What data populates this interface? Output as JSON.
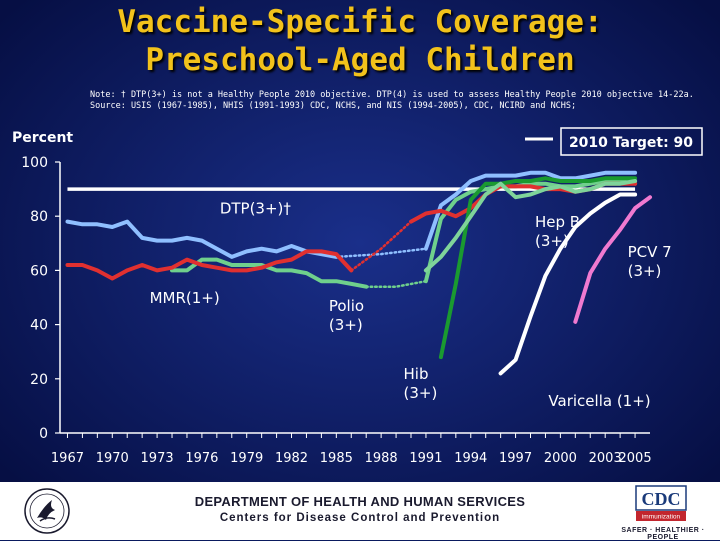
{
  "title": {
    "line1": "Vaccine-Specific Coverage:",
    "line2": "Preschool-Aged Children"
  },
  "notes": {
    "line1": "Note:  † DTP(3+) is not a Healthy People 2010 objective.  DTP(4) is used to assess Healthy People 2010 objective 14-22a.",
    "line2": "Source: USIS (1967-1985), NHIS (1991-1993) CDC, NCHS, and NIS (1994-2005), CDC, NCIRD and NCHS;"
  },
  "footer": {
    "department": "DEPARTMENT OF HEALTH AND HUMAN SERVICES",
    "centers": "Centers for Disease Control and Prevention",
    "cdc_logo": "CDC",
    "cdc_badge": "immunization",
    "cdc_tagline": "SAFER · HEALTHIER · PEOPLE",
    "hhs_logo_icon": "hhs-eagle-icon"
  },
  "colors": {
    "background": "#0a1a5e",
    "title": "#f2c21b",
    "dtp": "#8fbfff",
    "mmr": "#6fd08c",
    "polio": "#e03030",
    "hib": "#1a9a30",
    "hepb": "#7fd49a",
    "varicella": "#ffffff",
    "pcv7": "#f07ad0",
    "target": "#ffffff"
  },
  "chart_data": {
    "type": "line",
    "title": "Vaccine-Specific Coverage: Preschool-Aged Children",
    "ylabel": "Percent",
    "xlabel": "",
    "xlim": [
      1966.5,
      2006
    ],
    "ylim": [
      0,
      100
    ],
    "yticks": [
      0,
      20,
      40,
      60,
      80,
      100
    ],
    "xticks": [
      1967,
      1970,
      1973,
      1976,
      1979,
      1982,
      1985,
      1988,
      1991,
      1994,
      1997,
      2000,
      2003,
      2005
    ],
    "xtick_labels": [
      "1967",
      "1970",
      "1973",
      "1976",
      "1979",
      "1982",
      "1985",
      "1988",
      "1991",
      "1994",
      "1997",
      "2000",
      "2003",
      "2005"
    ],
    "grid": false,
    "target": {
      "label": "2010 Target: 90",
      "value": 90
    },
    "series": [
      {
        "name": "DTP(3+)†",
        "color": "#8fbfff",
        "segments": [
          {
            "style": "solid",
            "points": [
              [
                1967,
                78
              ],
              [
                1968,
                77
              ],
              [
                1969,
                77
              ],
              [
                1970,
                76
              ],
              [
                1971,
                78
              ],
              [
                1972,
                72
              ],
              [
                1973,
                71
              ],
              [
                1974,
                71
              ],
              [
                1975,
                72
              ],
              [
                1976,
                71
              ],
              [
                1977,
                68
              ],
              [
                1978,
                65
              ],
              [
                1979,
                67
              ],
              [
                1980,
                68
              ],
              [
                1981,
                67
              ],
              [
                1982,
                69
              ],
              [
                1983,
                67
              ],
              [
                1984,
                66
              ],
              [
                1985,
                65
              ]
            ]
          },
          {
            "style": "dotted",
            "points": [
              [
                1985,
                65
              ],
              [
                1988,
                66
              ],
              [
                1991,
                68
              ]
            ]
          },
          {
            "style": "solid",
            "points": [
              [
                1991,
                68
              ],
              [
                1992,
                84
              ],
              [
                1993,
                88
              ],
              [
                1994,
                93
              ],
              [
                1995,
                95
              ],
              [
                1996,
                95
              ],
              [
                1997,
                95
              ],
              [
                1998,
                96
              ],
              [
                1999,
                96
              ],
              [
                2000,
                94
              ],
              [
                2001,
                94
              ],
              [
                2002,
                95
              ],
              [
                2003,
                96
              ],
              [
                2004,
                96
              ],
              [
                2005,
                96
              ]
            ]
          }
        ]
      },
      {
        "name": "MMR(1+)",
        "color": "#6fd08c",
        "segments": [
          {
            "style": "solid",
            "points": [
              [
                1974,
                60
              ],
              [
                1975,
                60
              ],
              [
                1976,
                64
              ],
              [
                1977,
                64
              ],
              [
                1978,
                62
              ],
              [
                1979,
                62
              ],
              [
                1980,
                62
              ],
              [
                1981,
                60
              ],
              [
                1982,
                60
              ],
              [
                1983,
                59
              ],
              [
                1984,
                56
              ],
              [
                1985,
                56
              ],
              [
                1986,
                55
              ],
              [
                1987,
                54
              ]
            ]
          },
          {
            "style": "dotted",
            "points": [
              [
                1987,
                54
              ],
              [
                1989,
                54
              ],
              [
                1991,
                56
              ]
            ]
          },
          {
            "style": "solid",
            "points": [
              [
                1991,
                56
              ],
              [
                1992,
                79
              ],
              [
                1993,
                86
              ],
              [
                1994,
                89
              ],
              [
                1995,
                90
              ],
              [
                1996,
                91
              ],
              [
                1997,
                91
              ],
              [
                1998,
                92
              ],
              [
                1999,
                92
              ],
              [
                2000,
                91
              ],
              [
                2001,
                91
              ],
              [
                2002,
                92
              ],
              [
                2003,
                93
              ],
              [
                2004,
                93
              ],
              [
                2005,
                92
              ]
            ]
          }
        ]
      },
      {
        "name": "Polio (3+)",
        "color": "#e03030",
        "segments": [
          {
            "style": "solid",
            "points": [
              [
                1967,
                62
              ],
              [
                1968,
                62
              ],
              [
                1969,
                60
              ],
              [
                1970,
                57
              ],
              [
                1971,
                60
              ],
              [
                1972,
                62
              ],
              [
                1973,
                60
              ],
              [
                1974,
                61
              ],
              [
                1975,
                64
              ],
              [
                1976,
                62
              ],
              [
                1977,
                61
              ],
              [
                1978,
                60
              ],
              [
                1979,
                60
              ],
              [
                1980,
                61
              ],
              [
                1981,
                63
              ],
              [
                1982,
                64
              ],
              [
                1983,
                67
              ],
              [
                1984,
                67
              ],
              [
                1985,
                66
              ],
              [
                1986,
                60
              ]
            ]
          },
          {
            "style": "dotted",
            "points": [
              [
                1986,
                60
              ],
              [
                1988,
                68
              ],
              [
                1990,
                78
              ]
            ]
          },
          {
            "style": "solid",
            "points": [
              [
                1990,
                78
              ],
              [
                1991,
                81
              ],
              [
                1992,
                82
              ],
              [
                1993,
                80
              ],
              [
                1994,
                83
              ],
              [
                1995,
                88
              ],
              [
                1996,
                91
              ],
              [
                1997,
                91
              ],
              [
                1998,
                91
              ],
              [
                1999,
                90
              ],
              [
                2000,
                90
              ],
              [
                2001,
                89
              ],
              [
                2002,
                90
              ],
              [
                2003,
                92
              ],
              [
                2004,
                92
              ],
              [
                2005,
                92
              ]
            ]
          }
        ]
      },
      {
        "name": "Hib (3+)",
        "color": "#1a9a30",
        "segments": [
          {
            "style": "solid",
            "points": [
              [
                1992,
                28
              ],
              [
                1993,
                55
              ],
              [
                1994,
                86
              ],
              [
                1995,
                92
              ],
              [
                1996,
                92
              ],
              [
                1997,
                93
              ],
              [
                1998,
                93
              ],
              [
                1999,
                94
              ],
              [
                2000,
                93
              ],
              [
                2001,
                93
              ],
              [
                2002,
                93
              ],
              [
                2003,
                94
              ],
              [
                2004,
                94
              ],
              [
                2005,
                94
              ]
            ]
          }
        ]
      },
      {
        "name": "Hep B (3+)",
        "color": "#7fd49a",
        "segments": [
          {
            "style": "solid",
            "points": [
              [
                1991,
                60
              ],
              [
                1992,
                65
              ],
              [
                1993,
                72
              ],
              [
                1994,
                80
              ],
              [
                1995,
                88
              ],
              [
                1996,
                92
              ],
              [
                1997,
                87
              ],
              [
                1998,
                88
              ],
              [
                1999,
                90
              ],
              [
                2000,
                91
              ],
              [
                2001,
                89
              ],
              [
                2002,
                90
              ],
              [
                2003,
                92
              ],
              [
                2004,
                92
              ],
              [
                2005,
                93
              ]
            ]
          }
        ]
      },
      {
        "name": "Varicella (1+)",
        "color": "#ffffff",
        "segments": [
          {
            "style": "solid",
            "points": [
              [
                1996,
                22
              ],
              [
                1997,
                27
              ],
              [
                1998,
                43
              ],
              [
                1999,
                58
              ],
              [
                2000,
                68
              ],
              [
                2001,
                76
              ],
              [
                2002,
                81
              ],
              [
                2003,
                85
              ],
              [
                2004,
                88
              ],
              [
                2005,
                88
              ]
            ]
          }
        ]
      },
      {
        "name": "PCV 7 (3+)",
        "color": "#f07ad0",
        "segments": [
          {
            "style": "solid",
            "points": [
              [
                2001,
                41
              ],
              [
                2002,
                59
              ],
              [
                2003,
                68
              ],
              [
                2004,
                75
              ],
              [
                2005,
                83
              ],
              [
                2006,
                87
              ]
            ]
          }
        ]
      }
    ],
    "labels": [
      {
        "text": "DTP(3+)†",
        "lines": [
          "DTP(3+)†"
        ],
        "x": 1977.2,
        "y": 81
      },
      {
        "text": "MMR(1+)",
        "lines": [
          "MMR(1+)"
        ],
        "x": 1972.5,
        "y": 48
      },
      {
        "text": "Polio (3+)",
        "lines": [
          "Polio",
          "(3+)"
        ],
        "x": 1984.5,
        "y": 45
      },
      {
        "text": "Hib (3+)",
        "lines": [
          "Hib",
          "(3+)"
        ],
        "x": 1989.5,
        "y": 20
      },
      {
        "text": "Hep B (3+)",
        "lines": [
          "Hep B",
          "(3+)"
        ],
        "x": 1998.3,
        "y": 76
      },
      {
        "text": "Varicella (1+)",
        "lines": [
          "Varicella (1+)"
        ],
        "x": 1999.2,
        "y": 10
      },
      {
        "text": "PCV 7 (3+)",
        "lines": [
          "PCV 7",
          "(3+)"
        ],
        "x": 2004.5,
        "y": 65
      }
    ]
  }
}
